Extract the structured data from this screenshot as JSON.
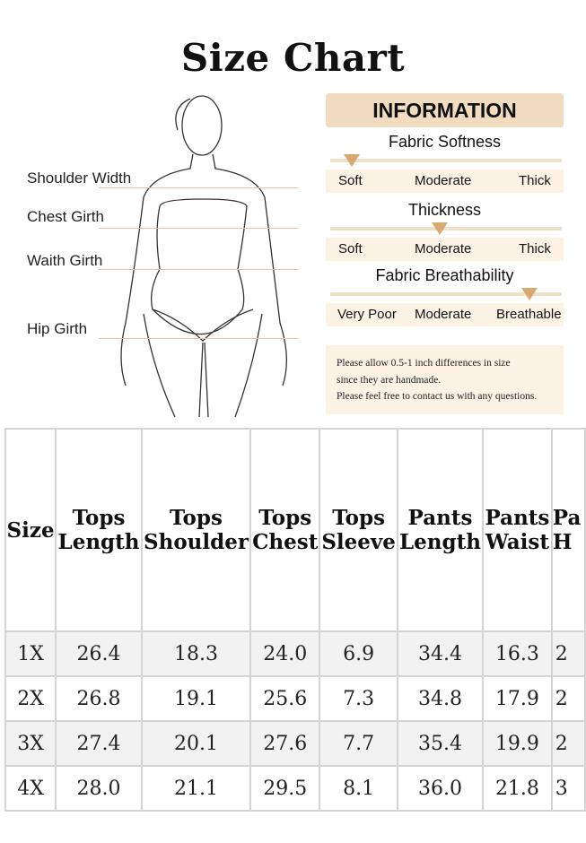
{
  "title": "Size Chart",
  "measure_labels": [
    "Shoulder Width",
    "Chest Girth",
    "Waith Girth",
    "Hip Girth"
  ],
  "info": {
    "heading": "INFORMATION",
    "properties": [
      {
        "name": "Fabric Softness",
        "scale": [
          "Soft",
          "Moderate",
          "Thick"
        ],
        "selected": "Soft"
      },
      {
        "name": "Thickness",
        "scale": [
          "Soft",
          "Moderate",
          "Thick"
        ],
        "selected": "Moderate"
      },
      {
        "name": "Fabric Breathability",
        "scale": [
          "Very Poor",
          "Moderate",
          "Breathable"
        ],
        "selected": "Breathable"
      }
    ],
    "note": [
      "Please allow 0.5-1 inch differences in size",
      "since they are handmade.",
      "Please feel free to contact us with any questions."
    ],
    "accent": "#d6aa72"
  },
  "table": {
    "headers": [
      [
        "Size"
      ],
      [
        "Tops",
        "Length"
      ],
      [
        "Tops",
        "Shoulder"
      ],
      [
        "Tops",
        "Chest"
      ],
      [
        "Tops",
        "Sleeve"
      ],
      [
        "Pants",
        "Length"
      ],
      [
        "Pants",
        "Waist"
      ],
      [
        "Pa",
        "H"
      ]
    ],
    "rows": [
      [
        "1X",
        "26.4",
        "18.3",
        "24.0",
        "6.9",
        "34.4",
        "16.3",
        "2"
      ],
      [
        "2X",
        "26.8",
        "19.1",
        "25.6",
        "7.3",
        "34.8",
        "17.9",
        "2"
      ],
      [
        "3X",
        "27.4",
        "20.1",
        "27.6",
        "7.7",
        "35.4",
        "19.9",
        "2"
      ],
      [
        "4X",
        "28.0",
        "21.1",
        "29.5",
        "8.1",
        "36.0",
        "21.8",
        "3"
      ]
    ]
  }
}
